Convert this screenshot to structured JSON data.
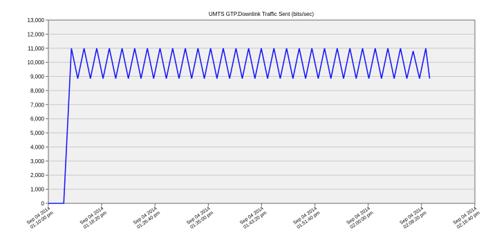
{
  "colors": {
    "frame_background": "#ffffff",
    "plot_background": "#f0f0f0",
    "grid": "#c8c8c8",
    "series": "#1818ff",
    "text": "#000000"
  },
  "chart_data": {
    "type": "line",
    "title": "UMTS GTP.Downlink Traffic Sent (bits/sec)",
    "xlabel": "",
    "ylabel": "",
    "x_unit": "minutes from Sep 04 2014 01:10:00 pm",
    "xlim": [
      0,
      66.67
    ],
    "ylim": [
      0,
      13000
    ],
    "y_ticks": [
      0,
      1000,
      2000,
      3000,
      4000,
      5000,
      6000,
      7000,
      8000,
      9000,
      10000,
      11000,
      12000,
      13000
    ],
    "y_tick_labels": [
      "0",
      "1,000",
      "2,000",
      "3,000",
      "4,000",
      "5,000",
      "6,000",
      "7,000",
      "8,000",
      "9,000",
      "10,000",
      "11,000",
      "12,000",
      "13,000"
    ],
    "x_ticks": [
      0,
      8.33,
      16.67,
      25,
      33.33,
      41.67,
      50,
      58.33,
      66.67
    ],
    "x_tick_labels": [
      [
        "Sep 04 2014",
        "01:10:00 pm"
      ],
      [
        "Sep 04 2014",
        "01:18:20 pm"
      ],
      [
        "Sep 04 2014",
        "01:26:40 pm"
      ],
      [
        "Sep 04 2014",
        "01:35:00 pm"
      ],
      [
        "Sep 04 2014",
        "01:43:20 pm"
      ],
      [
        "Sep 04 2014",
        "01:51:40 pm"
      ],
      [
        "Sep 04 2014",
        "02:00:00 pm"
      ],
      [
        "Sep 04 2014",
        "02:08:20 pm"
      ],
      [
        "Sep 04 2014",
        "02:16:40 pm"
      ]
    ],
    "grid": true,
    "legend": "none",
    "series": [
      {
        "start_points": [
          [
            0,
            0
          ],
          [
            2.4,
            0
          ],
          [
            3.6,
            11000
          ]
        ],
        "oscillation": {
          "x_start": 3.6,
          "x_end": 59.0,
          "cycles": 28,
          "high": 11000,
          "low": 8850
        },
        "tail_points": [
          [
            59.0,
            11000
          ],
          [
            59.6,
            8850
          ]
        ],
        "dips": [
          {
            "x": 57.4,
            "y": 10800
          }
        ]
      }
    ]
  }
}
